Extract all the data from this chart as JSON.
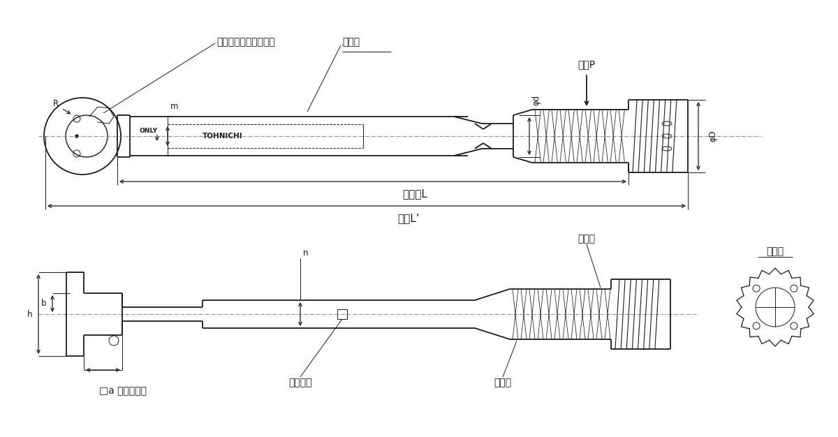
{
  "bg_color": "#ffffff",
  "line_color": "#1a1a1a",
  "text_color": "#1a1a1a",
  "labels": {
    "ratchet_lever": "ラチェット切替レバー",
    "model_name": "型式名",
    "hand_force": "手力P",
    "effective_length": "有効長L",
    "total_length": "全長L’",
    "sub_scale": "副目盛",
    "main_scale": "主目盛",
    "serial_number": "製造番号",
    "square_drive": "□a 角ドライブ",
    "locker": "ロッカ",
    "m_label": "m",
    "n_label": "n",
    "h_label": "h",
    "b_label": "b",
    "phi_d_label": "φd",
    "phi_D_label": "φD",
    "r_label": "R",
    "only_text": "ONLY",
    "tohnichi_text": "TOHNICHI"
  },
  "font_size_large": 12,
  "font_size_medium": 10,
  "font_size_small": 8.5
}
